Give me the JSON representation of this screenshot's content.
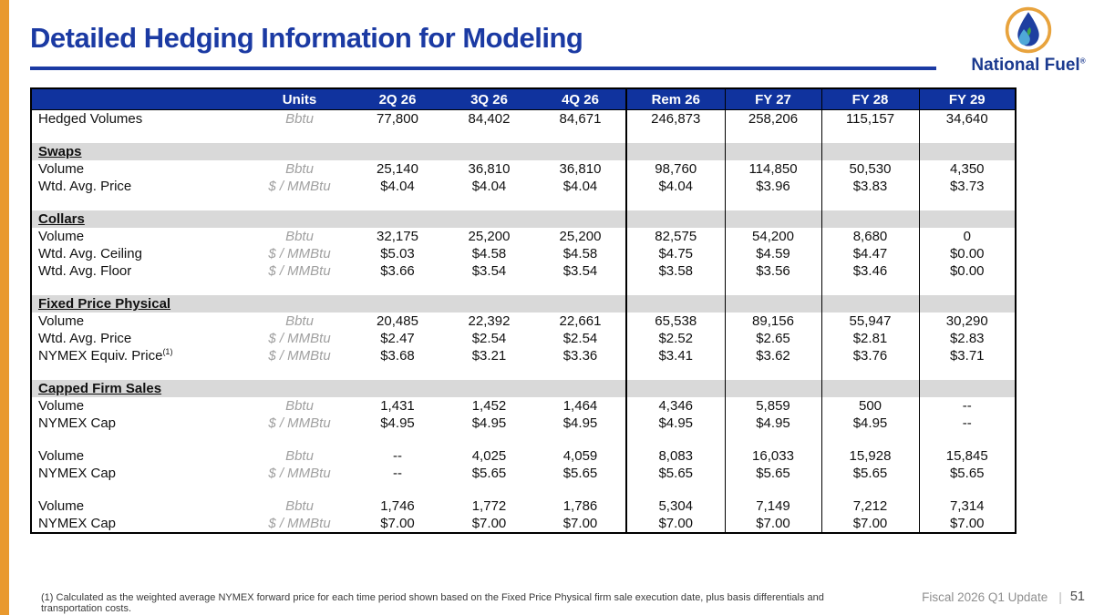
{
  "slide": {
    "title": "Detailed Hedging Information for Modeling",
    "footnote": "(1) Calculated as the weighted average NYMEX forward price for each time period shown based on the Fixed Price Physical firm sale execution date, plus basis differentials and transportation costs.",
    "footer": {
      "label": "Fiscal 2026 Q1 Update",
      "divider": "|",
      "page_number": "51"
    },
    "logo": {
      "brand": "National Fuel",
      "registered_mark": "®"
    },
    "colors": {
      "accent_orange": "#E9992E",
      "title_blue": "#1B3AA3",
      "header_blue": "#10339E",
      "band_gray": "#D9D9D9",
      "logo_ring_gold": "#E8A33D",
      "logo_flame_blue": "#1E3FA0",
      "logo_drop_lightblue": "#4FA8D8",
      "logo_leaf_green": "#3FA648"
    }
  },
  "table": {
    "columns": [
      "",
      "Units",
      "2Q 26",
      "3Q 26",
      "4Q 26",
      "Rem 26",
      "FY 27",
      "FY 28",
      "FY 29"
    ],
    "rows": [
      {
        "type": "data",
        "label": "Hedged Volumes",
        "units": "Bbtu",
        "values": [
          "77,800",
          "84,402",
          "84,671",
          "246,873",
          "258,206",
          "115,157",
          "34,640"
        ]
      },
      {
        "type": "spacer"
      },
      {
        "type": "section",
        "label": "Swaps"
      },
      {
        "type": "data",
        "label": "Volume",
        "units": "Bbtu",
        "values": [
          "25,140",
          "36,810",
          "36,810",
          "98,760",
          "114,850",
          "50,530",
          "4,350"
        ]
      },
      {
        "type": "data",
        "label": "Wtd. Avg. Price",
        "units": "$ / MMBtu",
        "values": [
          "$4.04",
          "$4.04",
          "$4.04",
          "$4.04",
          "$3.96",
          "$3.83",
          "$3.73"
        ]
      },
      {
        "type": "spacer"
      },
      {
        "type": "section",
        "label": "Collars"
      },
      {
        "type": "data",
        "label": "Volume",
        "units": "Bbtu",
        "values": [
          "32,175",
          "25,200",
          "25,200",
          "82,575",
          "54,200",
          "8,680",
          "0"
        ]
      },
      {
        "type": "data",
        "label": "Wtd. Avg. Ceiling",
        "units": "$ / MMBtu",
        "values": [
          "$5.03",
          "$4.58",
          "$4.58",
          "$4.75",
          "$4.59",
          "$4.47",
          "$0.00"
        ]
      },
      {
        "type": "data",
        "label": "Wtd. Avg. Floor",
        "units": "$ / MMBtu",
        "values": [
          "$3.66",
          "$3.54",
          "$3.54",
          "$3.58",
          "$3.56",
          "$3.46",
          "$0.00"
        ]
      },
      {
        "type": "spacer"
      },
      {
        "type": "section",
        "label": "Fixed Price Physical"
      },
      {
        "type": "data",
        "label": "Volume",
        "units": "Bbtu",
        "values": [
          "20,485",
          "22,392",
          "22,661",
          "65,538",
          "89,156",
          "55,947",
          "30,290"
        ]
      },
      {
        "type": "data",
        "label": "Wtd. Avg. Price",
        "units": "$ / MMBtu",
        "values": [
          "$2.47",
          "$2.54",
          "$2.54",
          "$2.52",
          "$2.65",
          "$2.81",
          "$2.83"
        ]
      },
      {
        "type": "data",
        "label": "NYMEX Equiv. Price",
        "label_sup": "(1)",
        "units": "$ / MMBtu",
        "values": [
          "$3.68",
          "$3.21",
          "$3.36",
          "$3.41",
          "$3.62",
          "$3.76",
          "$3.71"
        ]
      },
      {
        "type": "spacer"
      },
      {
        "type": "section",
        "label": "Capped Firm Sales"
      },
      {
        "type": "data",
        "label": "Volume",
        "units": "Bbtu",
        "values": [
          "1,431",
          "1,452",
          "1,464",
          "4,346",
          "5,859",
          "500",
          "--"
        ]
      },
      {
        "type": "data",
        "label": "NYMEX Cap",
        "units": "$ / MMBtu",
        "values": [
          "$4.95",
          "$4.95",
          "$4.95",
          "$4.95",
          "$4.95",
          "$4.95",
          "--"
        ]
      },
      {
        "type": "spacer"
      },
      {
        "type": "data",
        "label": "Volume",
        "units": "Bbtu",
        "values": [
          "--",
          "4,025",
          "4,059",
          "8,083",
          "16,033",
          "15,928",
          "15,845"
        ]
      },
      {
        "type": "data",
        "label": "NYMEX Cap",
        "units": "$ / MMBtu",
        "values": [
          "--",
          "$5.65",
          "$5.65",
          "$5.65",
          "$5.65",
          "$5.65",
          "$5.65"
        ]
      },
      {
        "type": "spacer"
      },
      {
        "type": "data",
        "label": "Volume",
        "units": "Bbtu",
        "values": [
          "1,746",
          "1,772",
          "1,786",
          "5,304",
          "7,149",
          "7,212",
          "7,314"
        ]
      },
      {
        "type": "data",
        "label": "NYMEX Cap",
        "units": "$ / MMBtu",
        "values": [
          "$7.00",
          "$7.00",
          "$7.00",
          "$7.00",
          "$7.00",
          "$7.00",
          "$7.00"
        ]
      }
    ]
  }
}
